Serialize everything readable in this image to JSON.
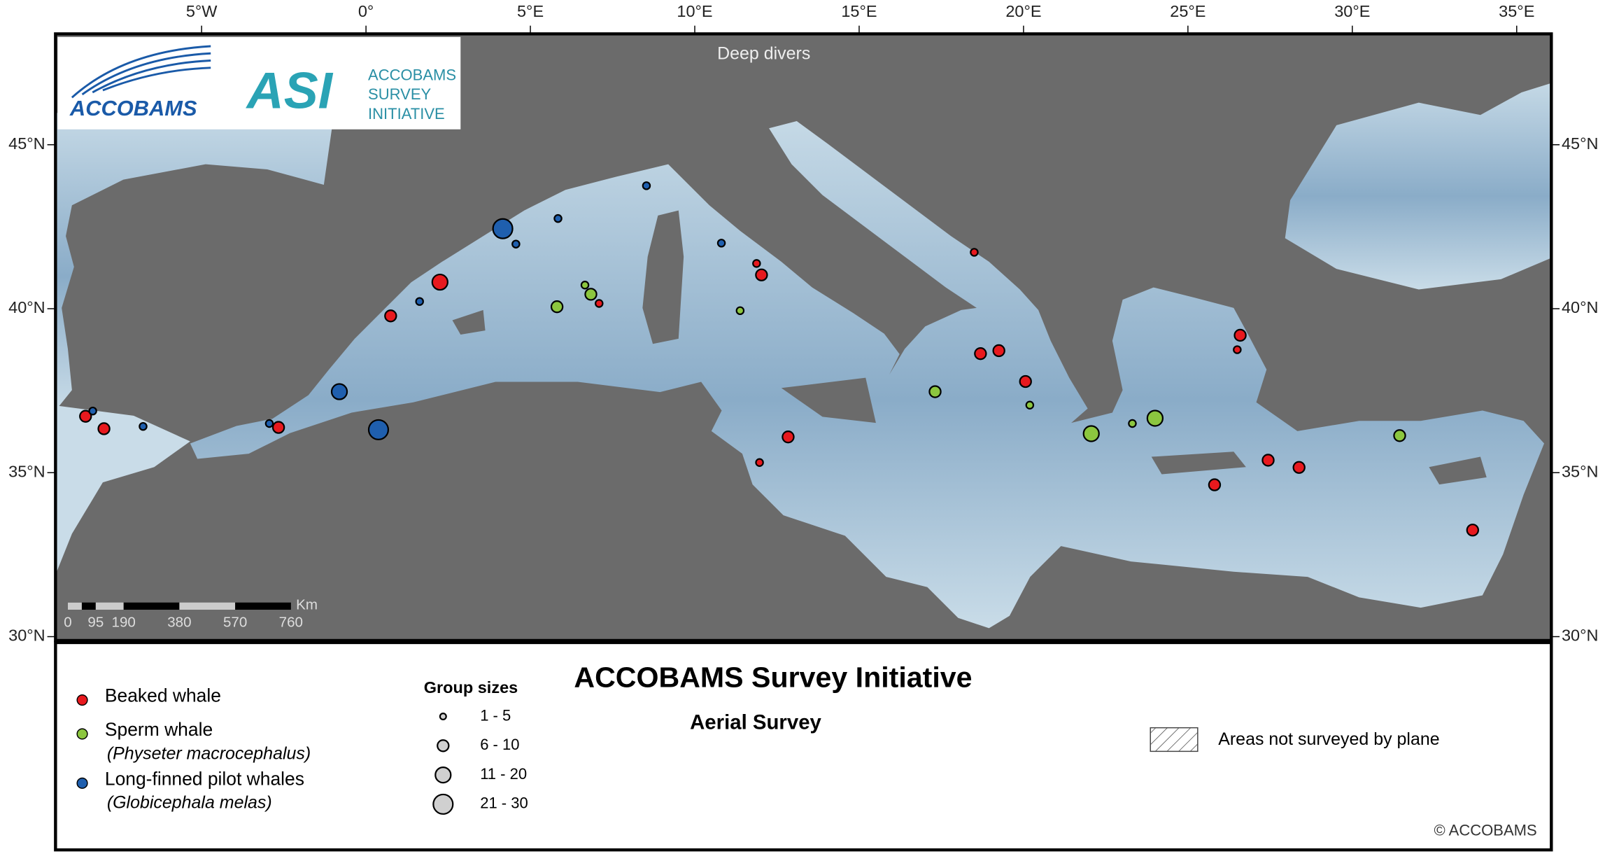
{
  "header": {
    "map_label": "Deep divers",
    "title": "ACCOBAMS Survey Initiative",
    "subtitle": "Aerial Survey",
    "copyright": "© ACCOBAMS"
  },
  "logos": {
    "left": "ACCOBAMS",
    "right_mark": "ASI",
    "right_lines": [
      "ACCOBAMS",
      "SURVEY",
      "INITIATIVE"
    ]
  },
  "axes": {
    "lon_ticks": [
      {
        "value": -5,
        "label": "5°W"
      },
      {
        "value": 0,
        "label": "0°"
      },
      {
        "value": 5,
        "label": "5°E"
      },
      {
        "value": 10,
        "label": "10°E"
      },
      {
        "value": 15,
        "label": "15°E"
      },
      {
        "value": 20,
        "label": "20°E"
      },
      {
        "value": 25,
        "label": "25°E"
      },
      {
        "value": 30,
        "label": "30°E"
      },
      {
        "value": 35,
        "label": "35°E"
      }
    ],
    "lat_ticks": [
      {
        "value": 45,
        "label": "45°N"
      },
      {
        "value": 40,
        "label": "40°N"
      },
      {
        "value": 35,
        "label": "35°N"
      },
      {
        "value": 30,
        "label": "30°N"
      }
    ]
  },
  "scale_bar": {
    "unit": "Km",
    "ticks": [
      0,
      95,
      190,
      380,
      570,
      760
    ]
  },
  "legend": {
    "species": [
      {
        "name": "Beaked whale",
        "color": "#e8191e"
      },
      {
        "name": "Sperm whale",
        "latin": "(Physeter macrocephalus)",
        "color": "#8cc63f"
      },
      {
        "name": "Long-finned pilot whales",
        "latin": "(Globicephala melas)",
        "color": "#1f5fae"
      }
    ],
    "group_sizes_title": "Group sizes",
    "group_sizes": [
      "1 - 5",
      "6 - 10",
      "11 - 20",
      "21 - 30"
    ],
    "hatch_label": "Areas not surveyed by plane"
  },
  "sightings": [
    {
      "species": 0,
      "group_size": 1,
      "lon": -8.53,
      "lat": 36.72
    },
    {
      "species": 0,
      "group_size": 1,
      "lon": -7.97,
      "lat": 36.34
    },
    {
      "species": 0,
      "group_size": 1,
      "lon": -2.66,
      "lat": 36.38
    },
    {
      "species": 0,
      "group_size": 1,
      "lon": 0.75,
      "lat": 39.78
    },
    {
      "species": 0,
      "group_size": 2,
      "lon": 2.25,
      "lat": 40.81
    },
    {
      "species": 0,
      "group_size": 0,
      "lon": 7.09,
      "lat": 40.16
    },
    {
      "species": 0,
      "group_size": 0,
      "lon": 11.88,
      "lat": 41.38
    },
    {
      "species": 0,
      "group_size": 1,
      "lon": 12.03,
      "lat": 41.03
    },
    {
      "species": 0,
      "group_size": 0,
      "lon": 18.5,
      "lat": 41.72
    },
    {
      "species": 0,
      "group_size": 1,
      "lon": 18.69,
      "lat": 38.63
    },
    {
      "species": 0,
      "group_size": 1,
      "lon": 19.25,
      "lat": 38.72
    },
    {
      "species": 0,
      "group_size": 1,
      "lon": 20.06,
      "lat": 37.78
    },
    {
      "species": 0,
      "group_size": 1,
      "lon": 12.84,
      "lat": 36.09
    },
    {
      "species": 0,
      "group_size": 0,
      "lon": 11.97,
      "lat": 35.31
    },
    {
      "species": 0,
      "group_size": 1,
      "lon": 26.59,
      "lat": 39.19
    },
    {
      "species": 0,
      "group_size": 0,
      "lon": 26.5,
      "lat": 38.75
    },
    {
      "species": 0,
      "group_size": 1,
      "lon": 25.81,
      "lat": 34.63
    },
    {
      "species": 0,
      "group_size": 1,
      "lon": 27.44,
      "lat": 35.38
    },
    {
      "species": 0,
      "group_size": 1,
      "lon": 28.38,
      "lat": 35.16
    },
    {
      "species": 0,
      "group_size": 1,
      "lon": 33.66,
      "lat": 33.25
    },
    {
      "species": 1,
      "group_size": 0,
      "lon": 6.66,
      "lat": 40.72
    },
    {
      "species": 1,
      "group_size": 1,
      "lon": 6.84,
      "lat": 40.44
    },
    {
      "species": 1,
      "group_size": 1,
      "lon": 5.81,
      "lat": 40.06
    },
    {
      "species": 1,
      "group_size": 0,
      "lon": 11.38,
      "lat": 39.94
    },
    {
      "species": 1,
      "group_size": 1,
      "lon": 17.31,
      "lat": 37.47
    },
    {
      "species": 1,
      "group_size": 0,
      "lon": 20.19,
      "lat": 37.06
    },
    {
      "species": 1,
      "group_size": 2,
      "lon": 22.06,
      "lat": 36.19
    },
    {
      "species": 1,
      "group_size": 0,
      "lon": 23.31,
      "lat": 36.5
    },
    {
      "species": 1,
      "group_size": 2,
      "lon": 24.0,
      "lat": 36.66
    },
    {
      "species": 1,
      "group_size": 1,
      "lon": 31.44,
      "lat": 36.13
    },
    {
      "species": 2,
      "group_size": 3,
      "lon": 4.16,
      "lat": 42.44
    },
    {
      "species": 2,
      "group_size": 0,
      "lon": 4.56,
      "lat": 41.97
    },
    {
      "species": 2,
      "group_size": 0,
      "lon": 5.84,
      "lat": 42.75
    },
    {
      "species": 2,
      "group_size": 0,
      "lon": 8.53,
      "lat": 43.75
    },
    {
      "species": 2,
      "group_size": 0,
      "lon": 10.81,
      "lat": 42.0
    },
    {
      "species": 2,
      "group_size": 0,
      "lon": 1.63,
      "lat": 40.22
    },
    {
      "species": 2,
      "group_size": 2,
      "lon": -0.81,
      "lat": 37.47
    },
    {
      "species": 2,
      "group_size": 3,
      "lon": 0.38,
      "lat": 36.31
    },
    {
      "species": 2,
      "group_size": 0,
      "lon": -2.94,
      "lat": 36.5
    },
    {
      "species": 2,
      "group_size": 0,
      "lon": -8.31,
      "lat": 36.88
    },
    {
      "species": 2,
      "group_size": 0,
      "lon": -6.78,
      "lat": 36.41
    }
  ]
}
